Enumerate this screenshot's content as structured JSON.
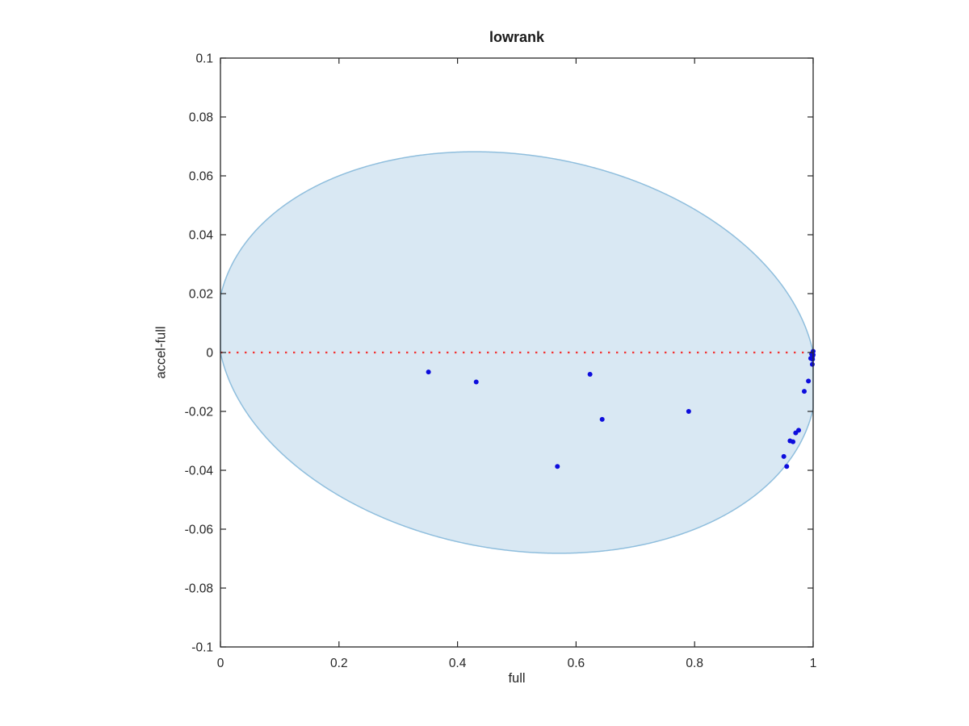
{
  "chart_data": {
    "type": "scatter",
    "title": "lowrank",
    "xlabel": "full",
    "ylabel": "accel-full",
    "xlim": [
      0,
      1
    ],
    "ylim": [
      -0.1,
      0.1
    ],
    "grid": false,
    "legend": null,
    "x_ticks": [
      0,
      0.2,
      0.4,
      0.6,
      0.8,
      1
    ],
    "x_tick_labels": [
      "0",
      "0.2",
      "0.4",
      "0.6",
      "0.8",
      "1"
    ],
    "y_ticks": [
      -0.1,
      -0.08,
      -0.06,
      -0.04,
      -0.02,
      0,
      0.02,
      0.04,
      0.06,
      0.08,
      0.1
    ],
    "y_tick_labels": [
      "-0.1",
      "-0.08",
      "-0.06",
      "-0.04",
      "-0.02",
      "0",
      "0.02",
      "0.04",
      "0.06",
      "0.08",
      "0.1"
    ],
    "points": [
      [
        0.351,
        -0.0066
      ],
      [
        0.4315,
        -0.01
      ],
      [
        0.5685,
        -0.0387
      ],
      [
        0.6235,
        -0.0074
      ],
      [
        0.644,
        -0.0227
      ],
      [
        0.79,
        -0.02
      ],
      [
        0.9505,
        -0.0353
      ],
      [
        0.9554,
        -0.0387
      ],
      [
        0.961,
        -0.03
      ],
      [
        0.966,
        -0.0303
      ],
      [
        0.9705,
        -0.0273
      ],
      [
        0.9755,
        -0.0264
      ],
      [
        0.985,
        -0.0132
      ],
      [
        0.992,
        -0.0097
      ],
      [
        0.9986,
        -0.004
      ],
      [
        0.9959,
        -0.002
      ],
      [
        0.999,
        -0.0023
      ],
      [
        0.9975,
        -0.0005
      ],
      [
        0.999,
        -0.0013
      ],
      [
        1.0,
        0.0004
      ],
      [
        1.0,
        -0.0008
      ]
    ],
    "zero_line": {
      "y": 0,
      "style": "dotted",
      "color": "#f23333"
    },
    "band": {
      "shape": "tilted-ellipse",
      "description": "confidence region: y^2 + k(2x-1)y + a*x*(x-1) = 0, clipped to 0<=x<=1",
      "k": 0.019,
      "a": 0.01823,
      "x_range": [
        0,
        1
      ],
      "fill": "#d9e8f3",
      "stroke": "#8fbedd"
    },
    "colors": {
      "points": "#0d0ddd",
      "axes": "#262626",
      "text": "#262626"
    }
  }
}
